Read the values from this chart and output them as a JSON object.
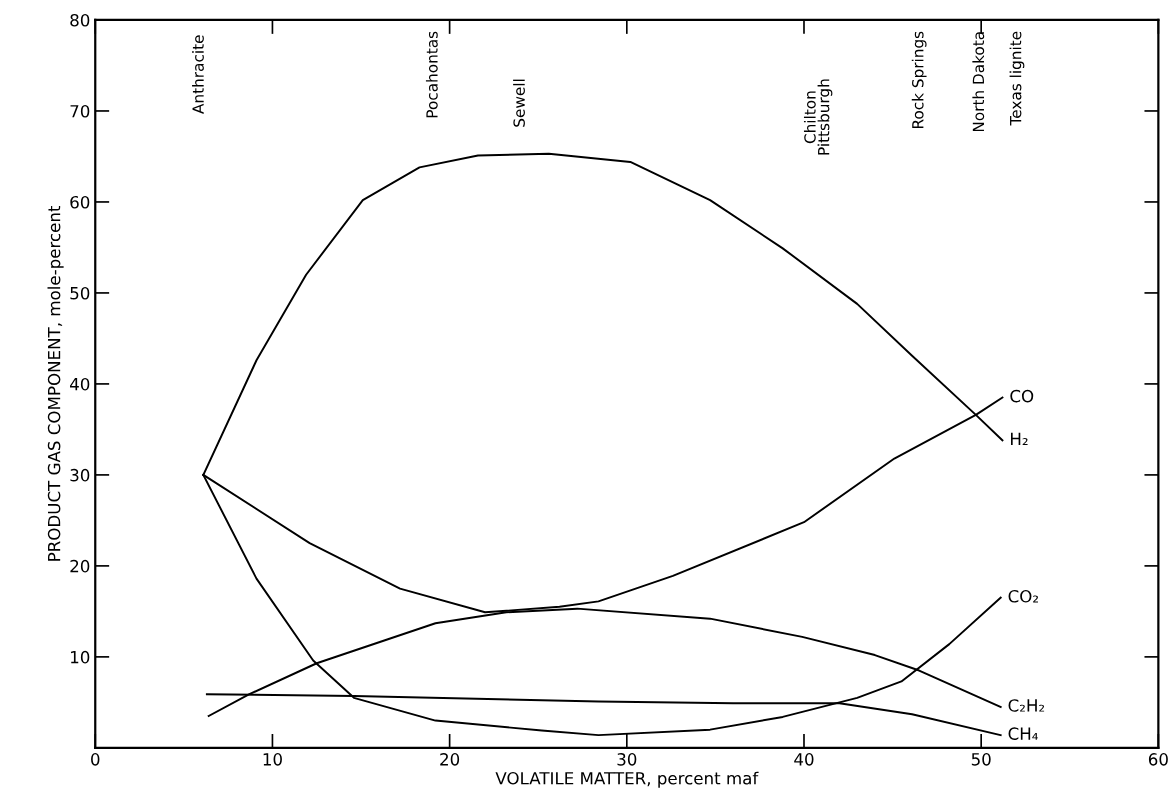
{
  "chart_data": {
    "type": "line",
    "xlabel": "VOLATILE MATTER, percent maf",
    "ylabel": "PRODUCT GAS COMPONENT, mole-percent",
    "xlim": [
      0,
      60
    ],
    "ylim": [
      0,
      80
    ],
    "xticks": [
      0,
      10,
      20,
      30,
      40,
      50,
      60
    ],
    "yticks": [
      10,
      20,
      30,
      40,
      50,
      60,
      70,
      80
    ],
    "grid": false,
    "legend": false,
    "marker": "none",
    "line_style": "solid",
    "series": [
      {
        "name": "H₂",
        "color": "#000000",
        "x": [
          6.1,
          9.1,
          11.9,
          15.1,
          18.3,
          21.6,
          25.6,
          30.2,
          34.7,
          38.8,
          43.0,
          46.1,
          49.7,
          51.2
        ],
        "values": [
          30,
          42.6,
          52,
          60.2,
          63.8,
          65.1,
          65.3,
          64.4,
          60.2,
          54.9,
          48.8,
          43.1,
          36.6,
          33.8
        ]
      },
      {
        "name": "CO",
        "color": "#000000",
        "x": [
          6.1,
          12.1,
          17.2,
          22.0,
          26.2,
          28.4,
          32.6,
          40.0,
          45.1,
          49.7,
          51.2
        ],
        "values": [
          30,
          22.5,
          17.5,
          14.9,
          15.5,
          16.1,
          18.9,
          24.8,
          31.8,
          36.6,
          38.5
        ]
      },
      {
        "name": "CO₂",
        "color": "#000000",
        "x": [
          6.1,
          9.1,
          12.3,
          14.6,
          19.2,
          25.2,
          28.4,
          34.7,
          38.8,
          43.0,
          45.5,
          48.2,
          51.1
        ],
        "values": [
          30,
          18.6,
          9.6,
          5.5,
          3.0,
          1.9,
          1.4,
          2.0,
          3.4,
          5.5,
          7.3,
          11.4,
          16.5
        ]
      },
      {
        "name": "C₂H₂",
        "color": "#000000",
        "x": [
          6.4,
          8.7,
          12.5,
          19.2,
          23.2,
          27.2,
          34.7,
          39.9,
          44.0,
          46.5,
          51.1
        ],
        "values": [
          3.5,
          5.9,
          9.3,
          13.7,
          14.9,
          15.3,
          14.2,
          12.2,
          10.2,
          8.5,
          4.5
        ]
      },
      {
        "name": "CH₄",
        "color": "#000000",
        "x": [
          6.3,
          14.6,
          28.4,
          36.0,
          42.0,
          46.1,
          51.1
        ],
        "values": [
          5.9,
          5.7,
          5.1,
          4.9,
          4.9,
          3.7,
          1.4
        ]
      }
    ],
    "annotations": [
      "Anthracite",
      "Pocahontas",
      "Sewell",
      "Chilton\nPittsburgh",
      "Rock Springs",
      "North Dakota",
      "Texas lignite"
    ]
  }
}
